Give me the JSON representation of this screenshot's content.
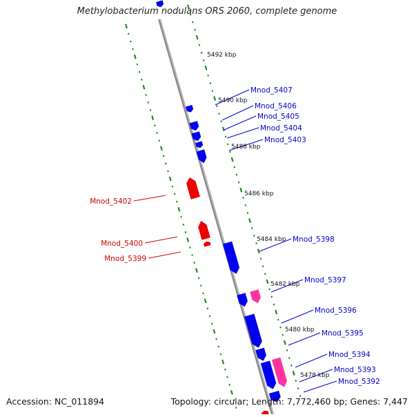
{
  "title": "Methylobacterium nodulans ORS 2060, complete genome",
  "footer": {
    "accession": "Accession: NC_011894",
    "summary": "Topology: circular; Length: 7,772,460 bp; Genes: 7,447"
  },
  "colors": {
    "forward_gene": "#0000ee",
    "reverse_gene": "#ee0000",
    "rna_gene": "#ff3399",
    "backbone": "#8a8a8a",
    "ruler": "#1a8a1a",
    "forward_label": "#0000cc",
    "reverse_label": "#cc0000"
  },
  "ruler_ticks": [
    {
      "pos_kbp": 5492,
      "label": "5492 kbp"
    },
    {
      "pos_kbp": 5490,
      "label": "5490 kbp"
    },
    {
      "pos_kbp": 5488,
      "label": "5488 kbp"
    },
    {
      "pos_kbp": 5486,
      "label": "5486 kbp"
    },
    {
      "pos_kbp": 5484,
      "label": "5484 kbp"
    },
    {
      "pos_kbp": 5482,
      "label": "5482 kbp"
    },
    {
      "pos_kbp": 5480,
      "label": "5480 kbp"
    },
    {
      "pos_kbp": 5478,
      "label": "5478 kbp"
    }
  ],
  "forward_genes": [
    {
      "label": "Mnod_5407"
    },
    {
      "label": "Mnod_5406"
    },
    {
      "label": "Mnod_5405"
    },
    {
      "label": "Mnod_5404"
    },
    {
      "label": "Mnod_5403"
    },
    {
      "label": "Mnod_5398"
    },
    {
      "label": "Mnod_5397"
    },
    {
      "label": "Mnod_5396"
    },
    {
      "label": "Mnod_5395"
    },
    {
      "label": "Mnod_5394"
    },
    {
      "label": "Mnod_5393"
    },
    {
      "label": "Mnod_5392"
    }
  ],
  "reverse_genes": [
    {
      "label": "Mnod_5402"
    },
    {
      "label": "Mnod_5400"
    },
    {
      "label": "Mnod_5399"
    }
  ]
}
